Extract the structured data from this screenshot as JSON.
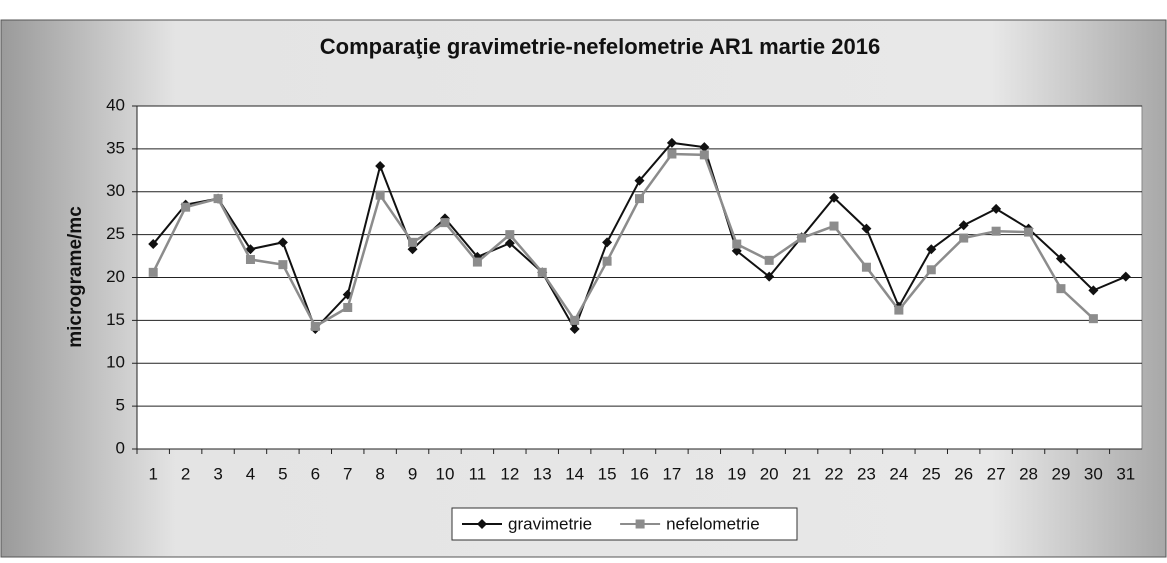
{
  "chart_data": {
    "type": "line",
    "title": "Comparaţie gravimetrie-nefelometrie AR1 martie  2016",
    "y_label": "micrograme/mc",
    "categories": [
      "1",
      "2",
      "3",
      "4",
      "5",
      "6",
      "7",
      "8",
      "9",
      "10",
      "11",
      "12",
      "13",
      "14",
      "15",
      "16",
      "17",
      "18",
      "19",
      "20",
      "21",
      "22",
      "23",
      "24",
      "25",
      "26",
      "27",
      "28",
      "29",
      "30",
      "31"
    ],
    "series": [
      {
        "name": "gravimetrie",
        "color": "#111111",
        "marker": "diamond",
        "values": [
          23.9,
          28.5,
          29.2,
          23.3,
          24.1,
          14.0,
          18.0,
          33.0,
          23.3,
          26.9,
          22.4,
          24.0,
          20.6,
          14.0,
          24.1,
          31.3,
          35.7,
          35.2,
          23.1,
          20.1,
          24.7,
          29.3,
          25.7,
          16.6,
          23.3,
          26.1,
          28.0,
          25.7,
          22.2,
          18.5,
          20.1
        ]
      },
      {
        "name": "nefelometrie",
        "color": "#8c8c8c",
        "marker": "square",
        "values": [
          20.6,
          28.2,
          29.2,
          22.1,
          21.5,
          14.3,
          16.5,
          29.6,
          24.1,
          26.4,
          21.8,
          25.0,
          20.6,
          15.0,
          21.9,
          29.2,
          34.4,
          34.3,
          23.9,
          22.0,
          24.6,
          26.0,
          21.2,
          16.2,
          20.9,
          24.6,
          25.4,
          25.3,
          18.7,
          15.2,
          null
        ]
      }
    ],
    "ylim": [
      0,
      40
    ],
    "yticks": [
      0,
      5,
      10,
      15,
      20,
      25,
      30,
      35,
      40
    ],
    "grid": true,
    "legend": "bottom"
  }
}
